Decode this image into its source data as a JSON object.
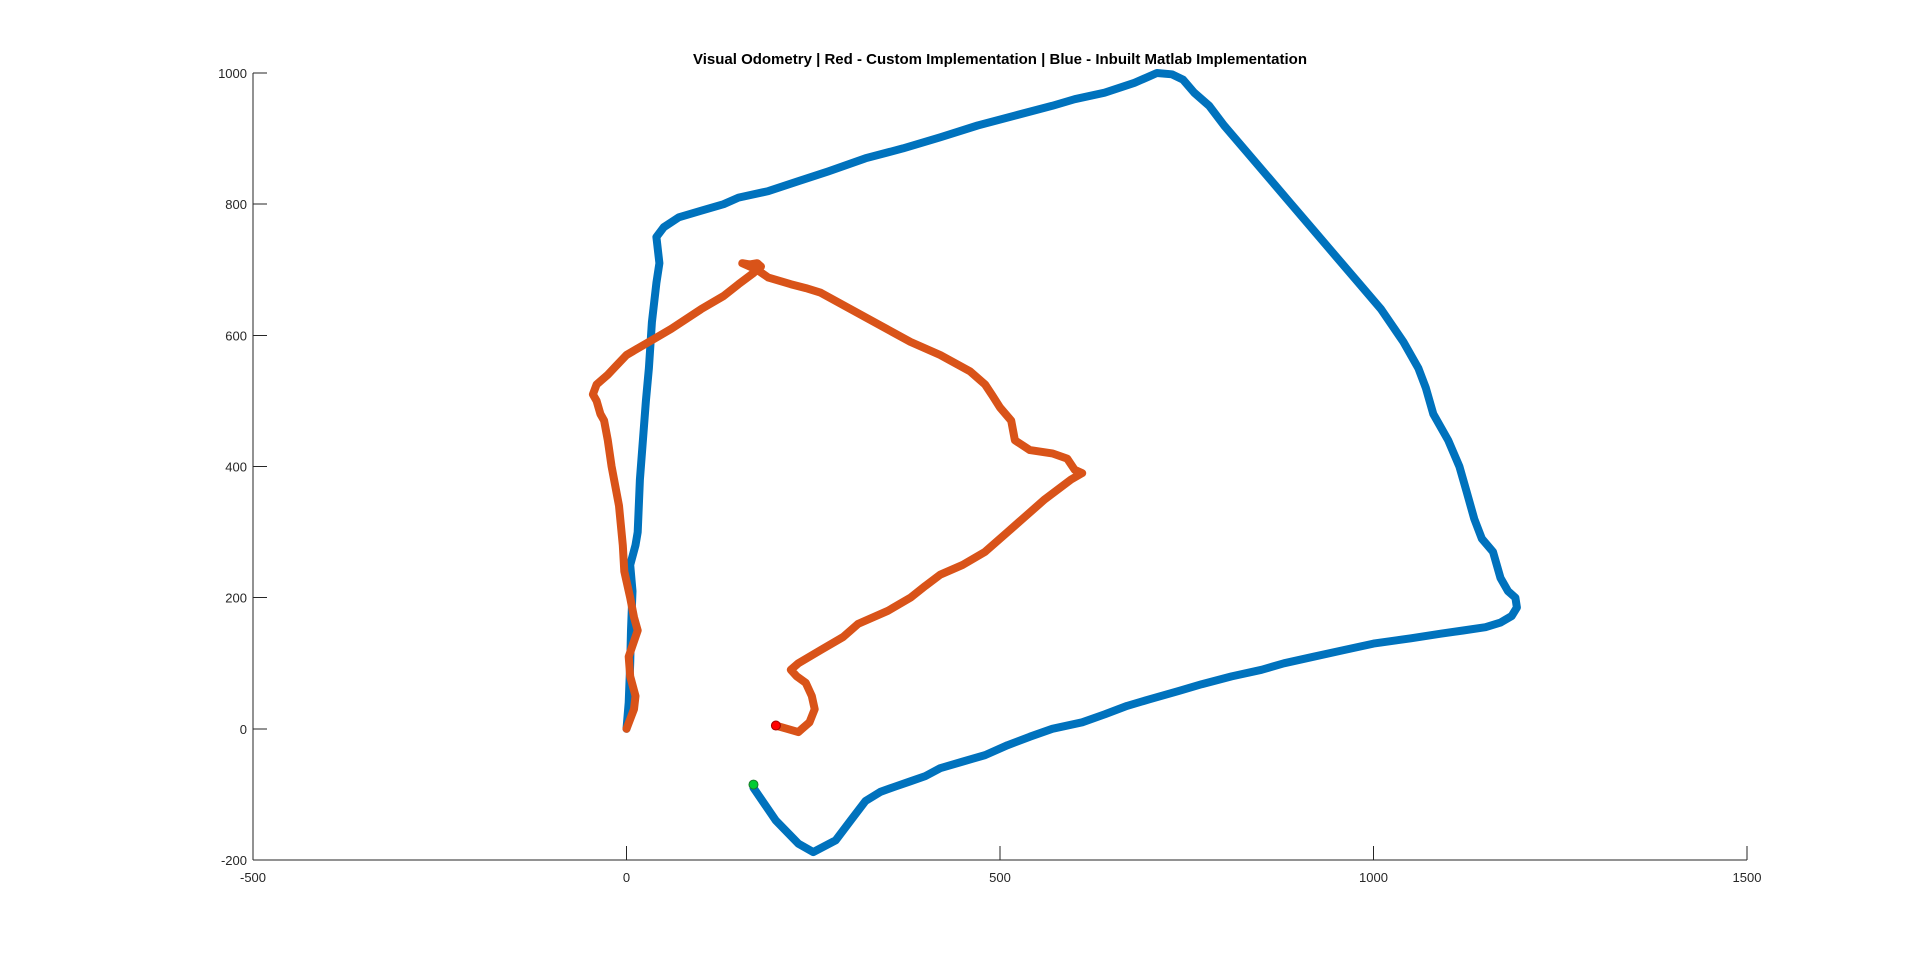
{
  "chart_data": {
    "type": "line",
    "title": "Visual Odometry | Red - Custom Implementation | Blue - Inbuilt Matlab Implementation",
    "xlabel": "",
    "ylabel": "",
    "xlim": [
      -500,
      1500
    ],
    "ylim": [
      -200,
      1000
    ],
    "x_ticks": [
      -500,
      0,
      500,
      1000,
      1500
    ],
    "y_ticks": [
      -200,
      0,
      200,
      400,
      600,
      800,
      1000
    ],
    "x_tick_labels": [
      "-500",
      "0",
      "500",
      "1000",
      "1500"
    ],
    "y_tick_labels": [
      "-200",
      "0",
      "200",
      "400",
      "600",
      "800",
      "1000"
    ],
    "grid": false,
    "series": [
      {
        "color": "#0072BD",
        "points": [
          [
            0,
            0
          ],
          [
            3,
            40
          ],
          [
            5,
            100
          ],
          [
            6,
            150
          ],
          [
            8,
            210
          ],
          [
            5,
            250
          ],
          [
            12,
            280
          ],
          [
            15,
            300
          ],
          [
            18,
            380
          ],
          [
            22,
            440
          ],
          [
            26,
            500
          ],
          [
            30,
            550
          ],
          [
            34,
            620
          ],
          [
            40,
            680
          ],
          [
            44,
            710
          ],
          [
            40,
            750
          ],
          [
            50,
            765
          ],
          [
            70,
            780
          ],
          [
            100,
            790
          ],
          [
            130,
            800
          ],
          [
            150,
            810
          ],
          [
            190,
            820
          ],
          [
            230,
            835
          ],
          [
            270,
            850
          ],
          [
            320,
            870
          ],
          [
            370,
            885
          ],
          [
            420,
            902
          ],
          [
            470,
            920
          ],
          [
            520,
            935
          ],
          [
            570,
            950
          ],
          [
            600,
            960
          ],
          [
            640,
            970
          ],
          [
            680,
            985
          ],
          [
            700,
            995
          ],
          [
            710,
            1000
          ],
          [
            730,
            998
          ],
          [
            745,
            990
          ],
          [
            760,
            970
          ],
          [
            780,
            950
          ],
          [
            800,
            920
          ],
          [
            830,
            880
          ],
          [
            860,
            840
          ],
          [
            890,
            800
          ],
          [
            920,
            760
          ],
          [
            950,
            720
          ],
          [
            980,
            680
          ],
          [
            1010,
            640
          ],
          [
            1040,
            590
          ],
          [
            1060,
            550
          ],
          [
            1070,
            520
          ],
          [
            1080,
            480
          ],
          [
            1100,
            440
          ],
          [
            1115,
            400
          ],
          [
            1125,
            360
          ],
          [
            1135,
            320
          ],
          [
            1145,
            290
          ],
          [
            1160,
            270
          ],
          [
            1170,
            230
          ],
          [
            1180,
            210
          ],
          [
            1190,
            200
          ],
          [
            1192,
            185
          ],
          [
            1185,
            172
          ],
          [
            1170,
            162
          ],
          [
            1150,
            155
          ],
          [
            1120,
            150
          ],
          [
            1090,
            145
          ],
          [
            1050,
            138
          ],
          [
            1000,
            130
          ],
          [
            960,
            120
          ],
          [
            920,
            110
          ],
          [
            880,
            100
          ],
          [
            850,
            90
          ],
          [
            810,
            80
          ],
          [
            770,
            68
          ],
          [
            740,
            58
          ],
          [
            700,
            45
          ],
          [
            670,
            35
          ],
          [
            640,
            22
          ],
          [
            610,
            10
          ],
          [
            570,
            0
          ],
          [
            540,
            -12
          ],
          [
            510,
            -25
          ],
          [
            480,
            -40
          ],
          [
            450,
            -50
          ],
          [
            420,
            -60
          ],
          [
            400,
            -72
          ],
          [
            380,
            -80
          ],
          [
            360,
            -88
          ],
          [
            340,
            -96
          ],
          [
            320,
            -110
          ],
          [
            300,
            -140
          ],
          [
            280,
            -170
          ],
          [
            250,
            -188
          ],
          [
            230,
            -175
          ],
          [
            200,
            -140
          ],
          [
            170,
            -90
          ]
        ]
      },
      {
        "color": "#D95319",
        "points": [
          [
            0,
            0
          ],
          [
            10,
            30
          ],
          [
            12,
            50
          ],
          [
            5,
            80
          ],
          [
            3,
            110
          ],
          [
            15,
            150
          ],
          [
            10,
            170
          ],
          [
            5,
            200
          ],
          [
            -3,
            240
          ],
          [
            -5,
            280
          ],
          [
            -10,
            340
          ],
          [
            -20,
            400
          ],
          [
            -25,
            440
          ],
          [
            -30,
            470
          ],
          [
            -35,
            480
          ],
          [
            -40,
            500
          ],
          [
            -45,
            510
          ],
          [
            -40,
            525
          ],
          [
            -25,
            540
          ],
          [
            -15,
            552
          ],
          [
            0,
            570
          ],
          [
            30,
            590
          ],
          [
            60,
            610
          ],
          [
            100,
            640
          ],
          [
            130,
            660
          ],
          [
            150,
            678
          ],
          [
            170,
            695
          ],
          [
            180,
            705
          ],
          [
            175,
            710
          ],
          [
            165,
            708
          ],
          [
            155,
            710
          ],
          [
            175,
            700
          ],
          [
            190,
            688
          ],
          [
            220,
            678
          ],
          [
            240,
            672
          ],
          [
            260,
            665
          ],
          [
            300,
            640
          ],
          [
            340,
            615
          ],
          [
            380,
            590
          ],
          [
            420,
            570
          ],
          [
            460,
            545
          ],
          [
            480,
            525
          ],
          [
            490,
            508
          ],
          [
            500,
            490
          ],
          [
            515,
            470
          ],
          [
            520,
            440
          ],
          [
            540,
            425
          ],
          [
            570,
            420
          ],
          [
            590,
            412
          ],
          [
            600,
            395
          ],
          [
            610,
            390
          ],
          [
            595,
            380
          ],
          [
            560,
            350
          ],
          [
            530,
            320
          ],
          [
            510,
            300
          ],
          [
            480,
            270
          ],
          [
            450,
            250
          ],
          [
            420,
            235
          ],
          [
            400,
            218
          ],
          [
            380,
            200
          ],
          [
            350,
            180
          ],
          [
            310,
            160
          ],
          [
            290,
            140
          ],
          [
            260,
            120
          ],
          [
            230,
            100
          ],
          [
            220,
            90
          ],
          [
            228,
            80
          ],
          [
            240,
            70
          ],
          [
            248,
            50
          ],
          [
            252,
            30
          ],
          [
            245,
            10
          ],
          [
            235,
            0
          ],
          [
            230,
            -5
          ],
          [
            215,
            0
          ],
          [
            200,
            5
          ]
        ]
      }
    ],
    "start_markers": [
      {
        "x": 170,
        "y": -85,
        "color": "#00CC33"
      },
      {
        "x": 200,
        "y": 5,
        "color": "#FF0000"
      }
    ]
  }
}
